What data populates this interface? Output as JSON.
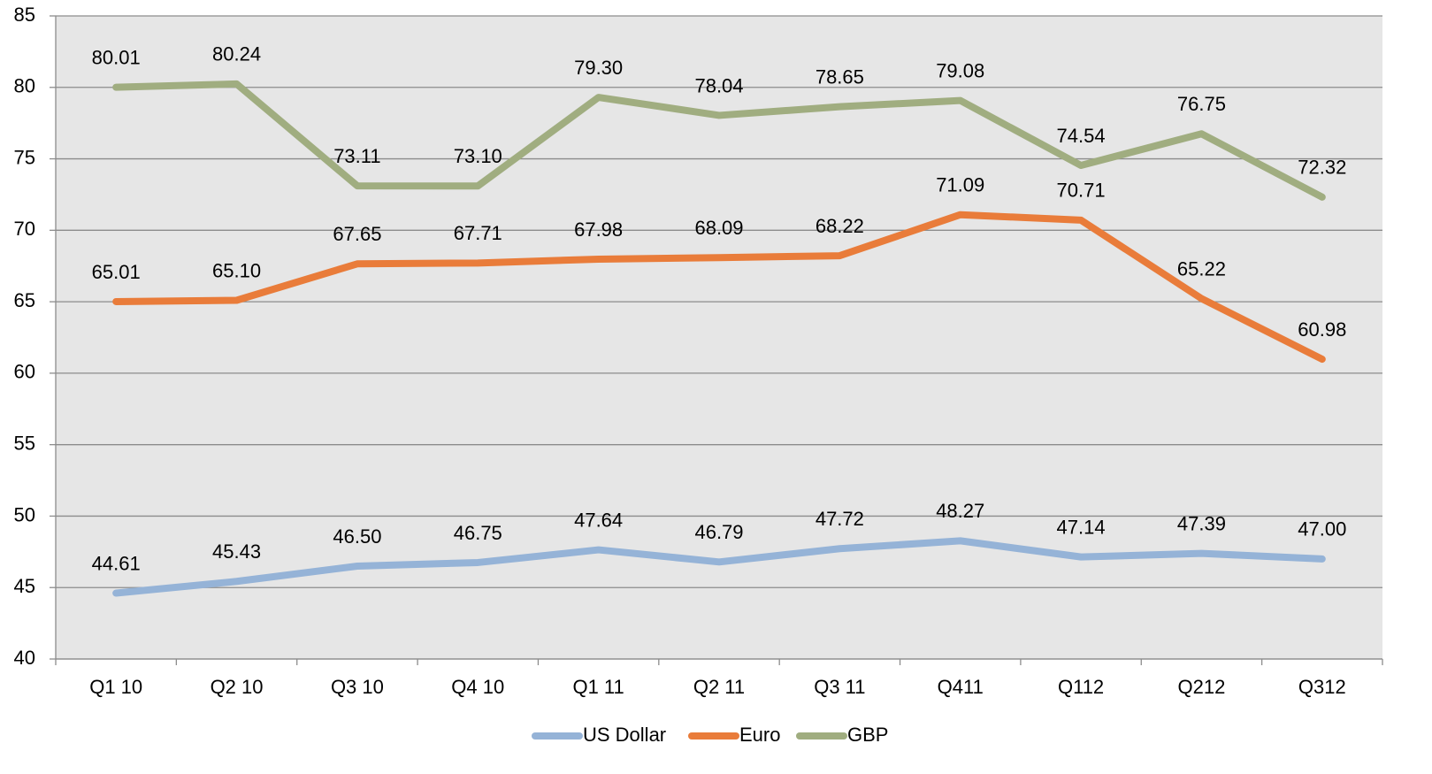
{
  "chart_data": {
    "type": "line",
    "categories": [
      "Q1 10",
      "Q2 10",
      "Q3 10",
      "Q4 10",
      "Q1 11",
      "Q2 11",
      "Q3 11",
      "Q411",
      "Q112",
      "Q212",
      "Q312"
    ],
    "series": [
      {
        "name": "US Dollar",
        "color": "#95b3d7",
        "values": [
          44.61,
          45.43,
          46.5,
          46.75,
          47.64,
          46.79,
          47.72,
          48.27,
          47.14,
          47.39,
          47.0
        ],
        "value_labels": [
          "44.61",
          "45.43",
          "46.50",
          "46.75",
          "47.64",
          "46.79",
          "47.72",
          "48.27",
          "47.14",
          "47.39",
          "47.00"
        ]
      },
      {
        "name": "Euro",
        "color": "#e97c3a",
        "values": [
          65.01,
          65.1,
          67.65,
          67.71,
          67.98,
          68.09,
          68.22,
          71.09,
          70.71,
          65.22,
          60.98
        ],
        "value_labels": [
          "65.01",
          "65.10",
          "67.65",
          "67.71",
          "67.98",
          "68.09",
          "68.22",
          "71.09",
          "70.71",
          "65.22",
          "60.98"
        ]
      },
      {
        "name": "GBP",
        "color": "#a0ad80",
        "values": [
          80.01,
          80.24,
          73.11,
          73.1,
          79.3,
          78.04,
          78.65,
          79.08,
          74.54,
          76.75,
          72.32
        ],
        "value_labels": [
          "80.01",
          "80.24",
          "73.11",
          "73.10",
          "79.30",
          "78.04",
          "78.65",
          "79.08",
          "74.54",
          "76.75",
          "72.32"
        ]
      }
    ],
    "ylim": [
      40,
      85
    ],
    "yticks": [
      40,
      45,
      50,
      55,
      60,
      65,
      70,
      75,
      80,
      85
    ],
    "grid": true,
    "legend": "bottom"
  }
}
